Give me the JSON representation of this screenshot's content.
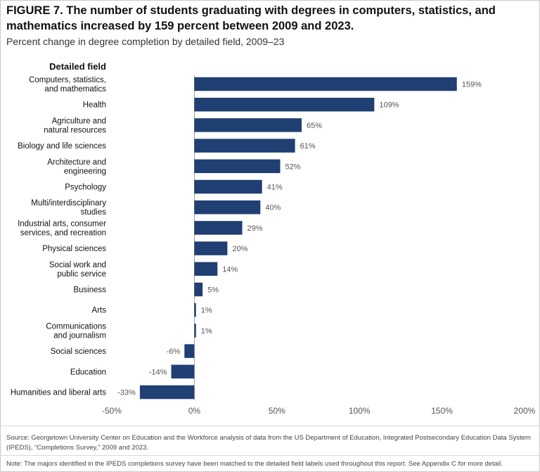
{
  "title": "FIGURE 7. The number of students graduating with degrees in computers, statistics, and mathematics increased by 159 percent between 2009 and 2023.",
  "subtitle": "Percent change in degree completion by detailed field, 2009–23",
  "source": "Source: Georgetown University Center on Education and the Workforce analysis of data from the US Department of Education, Integrated Postsecondary Education Data System (IPEDS), “Completions Survey,” 2009 and 2023.",
  "note": "Note: The majors identified in the IPEDS completions survey have been matched to the detailed field labels used throughout this report. See Appendix C for more detail.",
  "colors": {
    "bar": "#203f73",
    "text": "#111111",
    "value_label": "#555555",
    "axis": "#888888"
  },
  "chart_data": {
    "type": "bar",
    "orientation": "horizontal",
    "category_header": "Detailed field",
    "categories": [
      [
        "Computers, statistics,",
        "and mathematics"
      ],
      [
        "Health"
      ],
      [
        "Agriculture and",
        "natural resources"
      ],
      [
        "Biology and life sciences"
      ],
      [
        "Architecture and",
        "engineering"
      ],
      [
        "Psychology"
      ],
      [
        "Multi/interdisciplinary",
        "studies"
      ],
      [
        "Industrial arts, consumer",
        "services, and recreation"
      ],
      [
        "Physical sciences"
      ],
      [
        "Social work and",
        "public service"
      ],
      [
        "Business"
      ],
      [
        "Arts"
      ],
      [
        "Communications",
        "and journalism"
      ],
      [
        "Social sciences"
      ],
      [
        "Education"
      ],
      [
        "Humanities and liberal arts"
      ]
    ],
    "values": [
      159,
      109,
      65,
      61,
      52,
      41,
      40,
      29,
      20,
      14,
      5,
      1,
      1,
      -6,
      -14,
      -33
    ],
    "value_labels": [
      "159%",
      "109%",
      "65%",
      "61%",
      "52%",
      "41%",
      "40%",
      "29%",
      "20%",
      "14%",
      "5%",
      "1%",
      "1%",
      "-6%",
      "-14%",
      "-33%"
    ],
    "xlim": [
      -50,
      200
    ],
    "x_ticks": [
      -50,
      0,
      50,
      100,
      150,
      200
    ],
    "x_tick_labels": [
      "-50%",
      "0%",
      "50%",
      "100%",
      "150%",
      "200%"
    ],
    "grid": false,
    "legend": "none"
  }
}
